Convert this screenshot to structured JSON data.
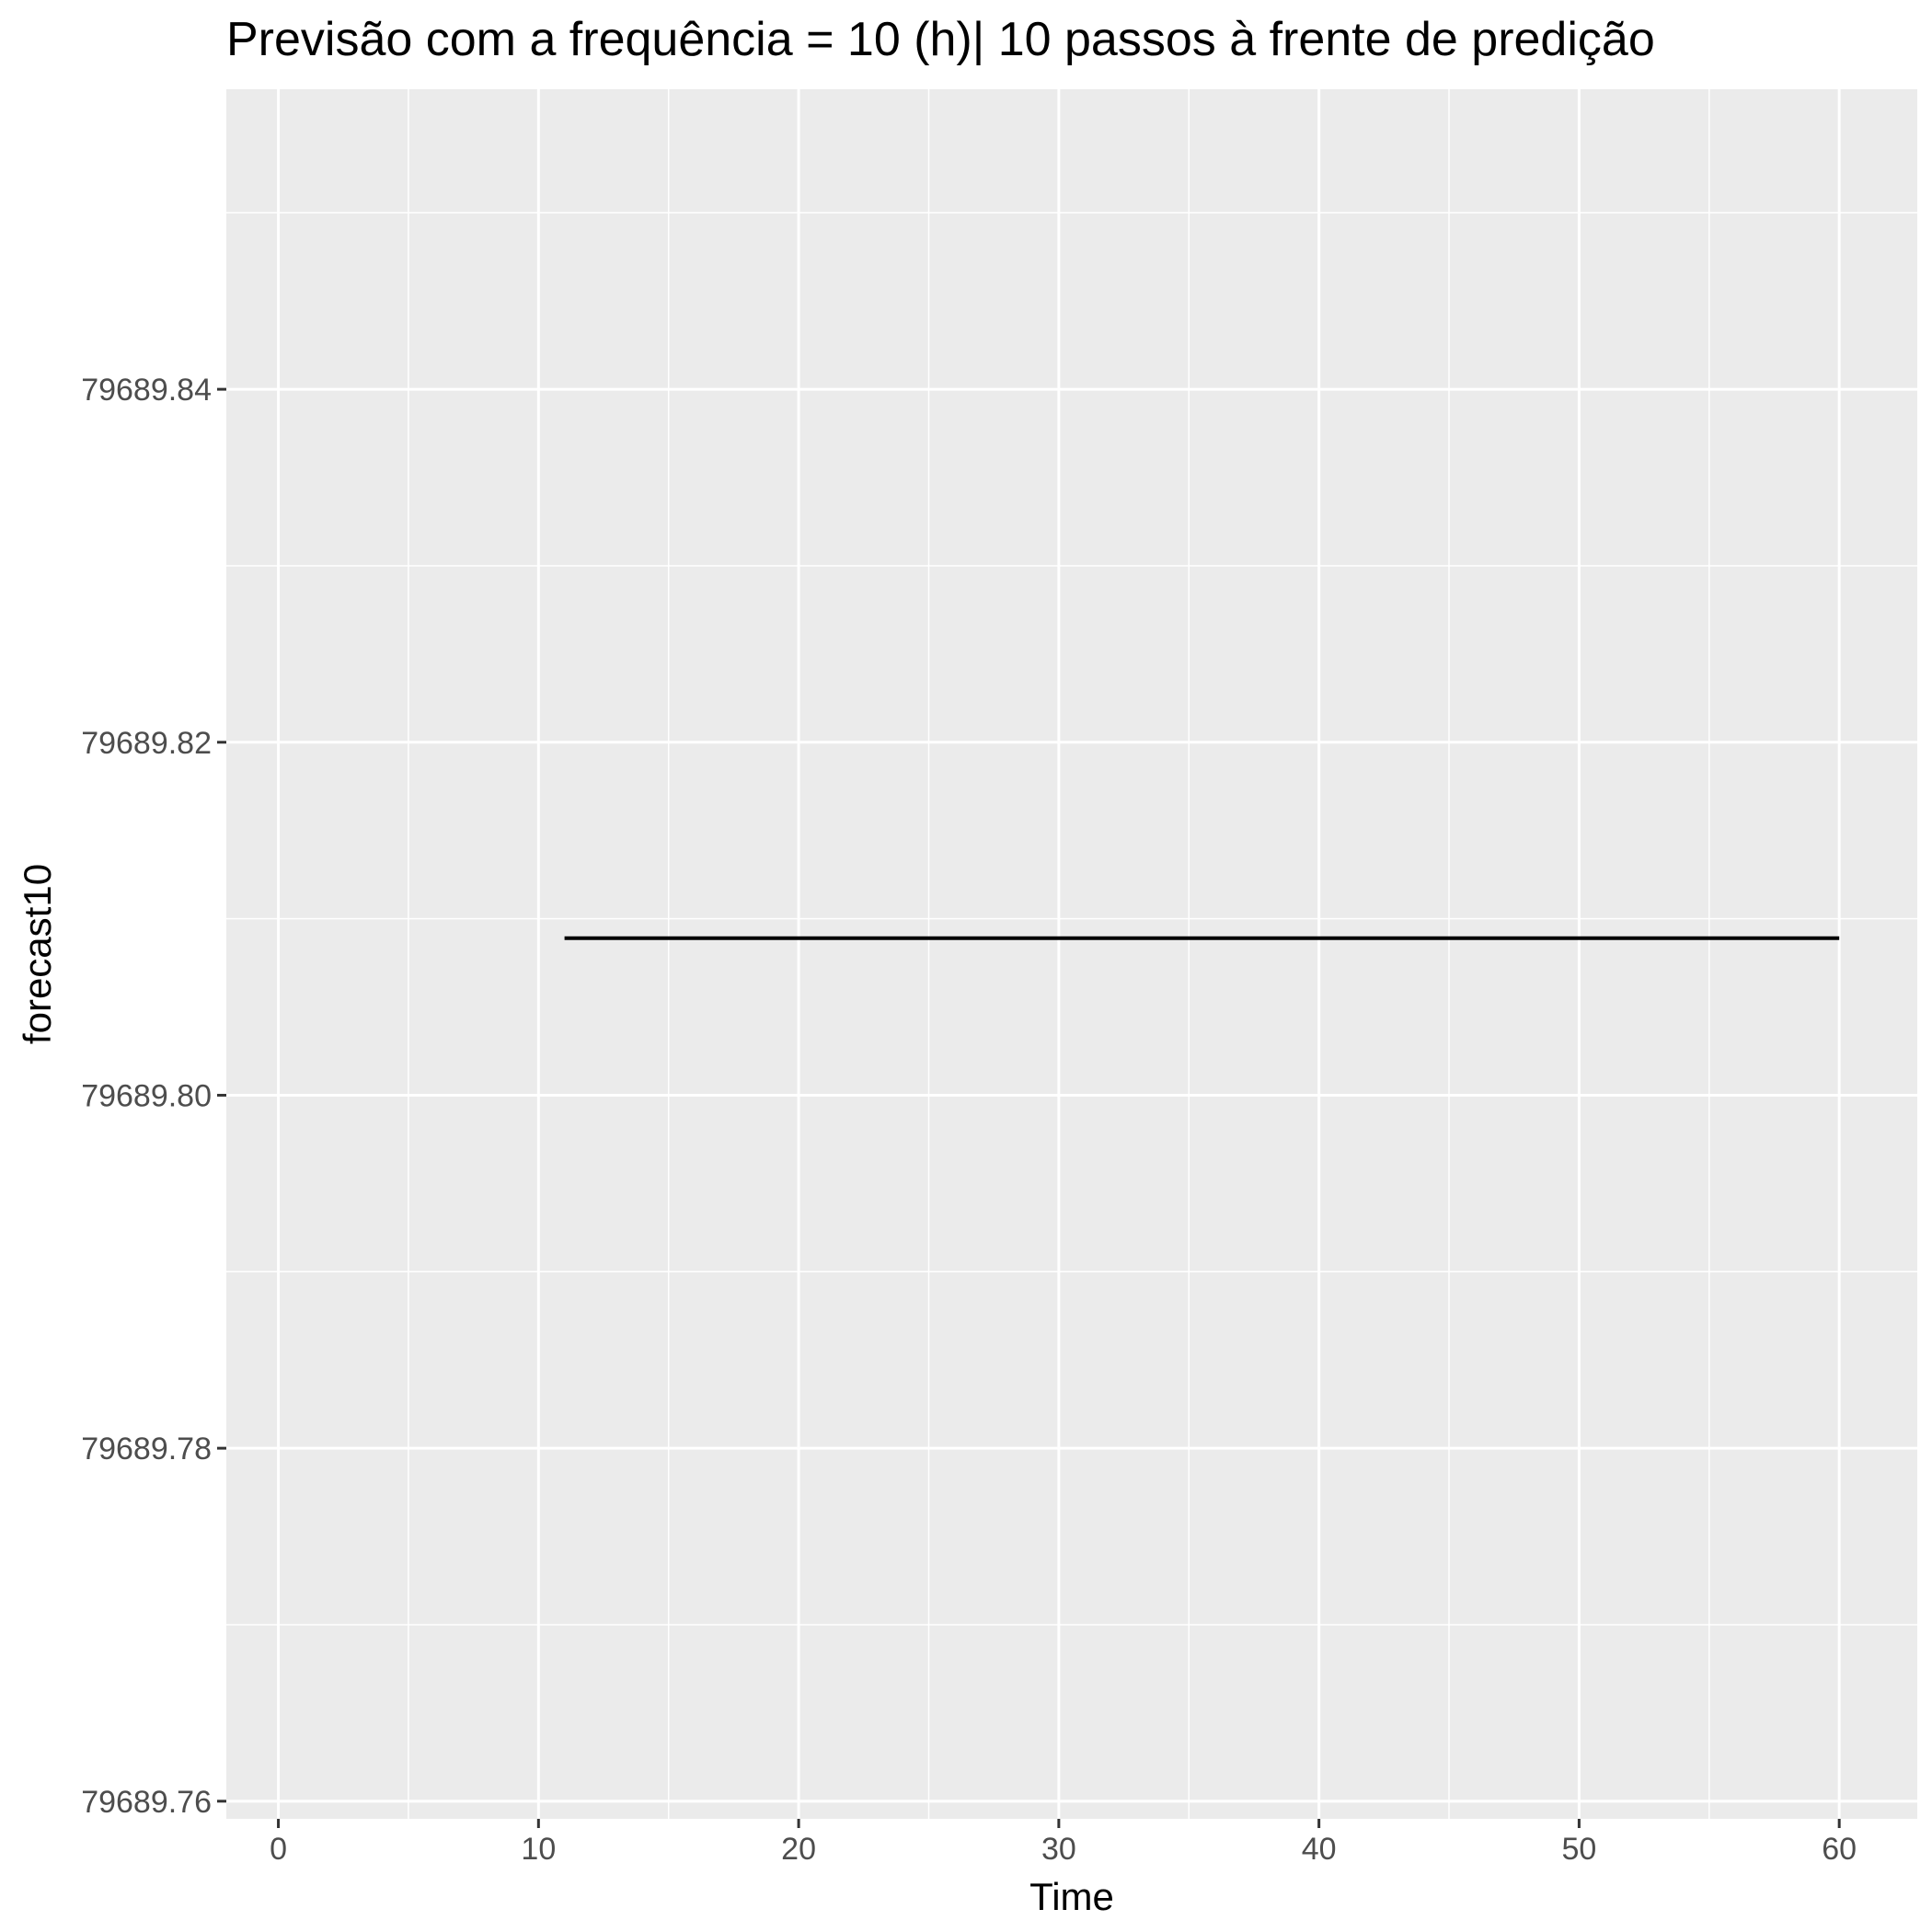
{
  "chart_data": {
    "type": "line",
    "title": "Previsão com a frequência = 10 (h)| 10 passos à frente de predição",
    "xlabel": "Time",
    "ylabel": "forecast10",
    "xlim": [
      -2,
      63
    ],
    "ylim": [
      79689.759,
      79689.857
    ],
    "x_ticks": [
      0,
      10,
      20,
      30,
      40,
      50,
      60
    ],
    "x_tick_labels": [
      "0",
      "10",
      "20",
      "30",
      "40",
      "50",
      "60"
    ],
    "y_ticks": [
      79689.76,
      79689.78,
      79689.8,
      79689.82,
      79689.84
    ],
    "y_tick_labels": [
      "79689.76",
      "79689.78",
      "79689.80",
      "79689.82",
      "79689.84"
    ],
    "grid": true,
    "legend": "none",
    "colors": {
      "panel": "#ebebeb",
      "grid": "#ffffff",
      "line": "#000000",
      "tick": "#333333"
    },
    "series": [
      {
        "x": [
          11,
          60
        ],
        "y": [
          79689.8089,
          79689.8089
        ]
      }
    ]
  }
}
